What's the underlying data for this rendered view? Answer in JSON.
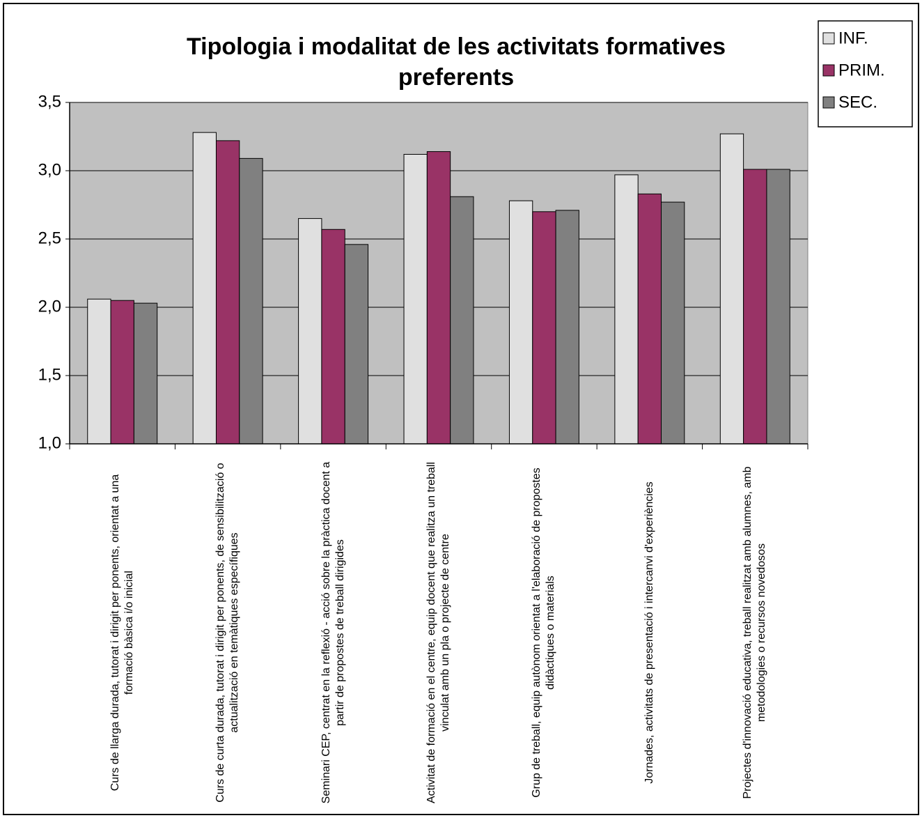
{
  "chart_data": {
    "type": "bar",
    "title": "Tipologia i modalitat de les activitats formatives preferents",
    "categories": [
      "Curs de llarga durada, tutorat i dirigit per ponents, orientat a una formació bàsica i/o inicial",
      "Curs de curta durada, tutorat i dirigit per ponents, de sensibilització o actualització en temàtiques específiques",
      "Seminari CEP, centrat en la reflexió - acció sobre la pràctica docent a partir de propostes de treball dirigides",
      "Activitat de formació en el centre, equip docent que realitza un treball vinculat amb un pla o projecte de centre",
      "Grup de treball, equip autònom orientat a l'elaboració de propostes didàctiques o materials",
      "Jornades, activitats de presentació i intercanvi d'experiències",
      "Projectes d'innovació educativa, treball realitzat amb alumnes, amb metodologies o recursos novedosos"
    ],
    "series": [
      {
        "name": "INF.",
        "color": "#e0e0e0",
        "values": [
          2.06,
          3.28,
          2.65,
          3.12,
          2.78,
          2.97,
          3.27
        ]
      },
      {
        "name": "PRIM.",
        "color": "#993366",
        "values": [
          2.05,
          3.22,
          2.57,
          3.14,
          2.7,
          2.83,
          3.01
        ]
      },
      {
        "name": "SEC.",
        "color": "#808080",
        "values": [
          2.03,
          3.09,
          2.46,
          2.81,
          2.71,
          2.77,
          3.01
        ]
      }
    ],
    "ylim": [
      1.0,
      3.5
    ],
    "yticks": [
      {
        "value": 1.0,
        "label": "1,0"
      },
      {
        "value": 1.5,
        "label": "1,5"
      },
      {
        "value": 2.0,
        "label": "2,0"
      },
      {
        "value": 2.5,
        "label": "2,5"
      },
      {
        "value": 3.0,
        "label": "3,0"
      },
      {
        "value": 3.5,
        "label": "3,5"
      }
    ],
    "grid": true,
    "legend": "top-right"
  }
}
